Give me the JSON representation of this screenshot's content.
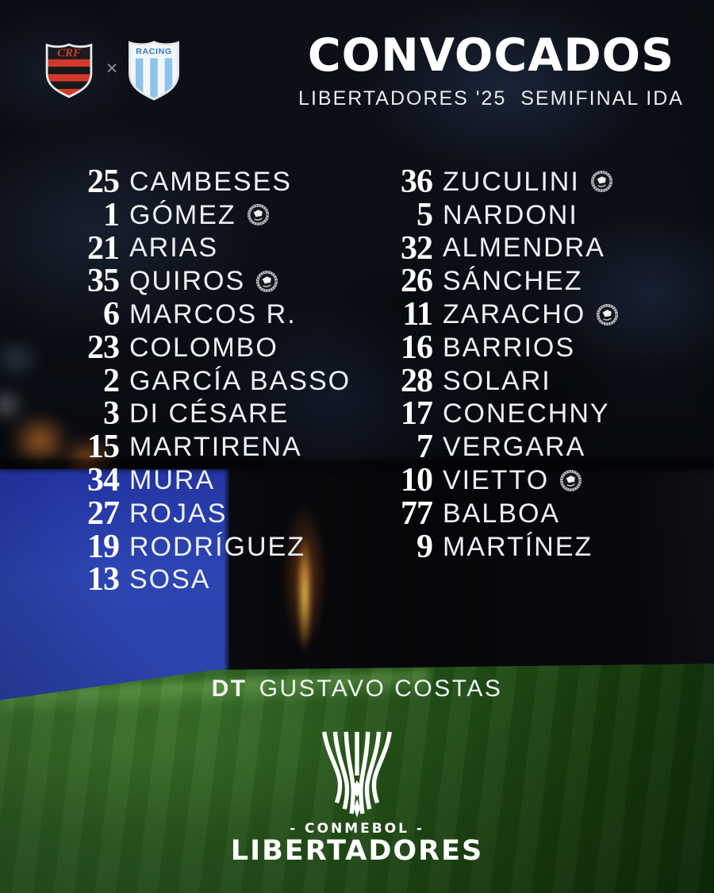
{
  "header": {
    "home_crest_monogram": "CRF",
    "away_crest_label": "RACING",
    "versus": "×",
    "title": "CONVOCADOS",
    "subtitle": "LIBERTADORES '25  SEMIFINAL IDA"
  },
  "squad": {
    "left_column": [
      {
        "number": "25",
        "name": "CAMBESES",
        "ball": false
      },
      {
        "number": "1",
        "name": "GÓMEZ",
        "ball": true
      },
      {
        "number": "21",
        "name": "ARIAS",
        "ball": false
      },
      {
        "number": "35",
        "name": "QUIROS",
        "ball": true
      },
      {
        "number": "6",
        "name": "MARCOS R.",
        "ball": false
      },
      {
        "number": "23",
        "name": "COLOMBO",
        "ball": false
      },
      {
        "number": "2",
        "name": "GARCÍA BASSO",
        "ball": false
      },
      {
        "number": "3",
        "name": "DI CÉSARE",
        "ball": false
      },
      {
        "number": "15",
        "name": "MARTIRENA",
        "ball": false
      },
      {
        "number": "34",
        "name": "MURA",
        "ball": false
      },
      {
        "number": "27",
        "name": "ROJAS",
        "ball": false
      },
      {
        "number": "19",
        "name": "RODRÍGUEZ",
        "ball": false
      },
      {
        "number": "13",
        "name": "SOSA",
        "ball": false
      }
    ],
    "right_column": [
      {
        "number": "36",
        "name": "ZUCULINI",
        "ball": true
      },
      {
        "number": "5",
        "name": "NARDONI",
        "ball": false
      },
      {
        "number": "32",
        "name": "ALMENDRA",
        "ball": false
      },
      {
        "number": "26",
        "name": "SÁNCHEZ",
        "ball": false
      },
      {
        "number": "11",
        "name": "ZARACHO",
        "ball": true
      },
      {
        "number": "16",
        "name": "BARRIOS",
        "ball": false
      },
      {
        "number": "28",
        "name": "SOLARI",
        "ball": false
      },
      {
        "number": "17",
        "name": "CONECHNY",
        "ball": false
      },
      {
        "number": "7",
        "name": "VERGARA",
        "ball": false
      },
      {
        "number": "10",
        "name": "VIETTO",
        "ball": true
      },
      {
        "number": "77",
        "name": "BALBOA",
        "ball": false
      },
      {
        "number": "9",
        "name": "MARTÍNEZ",
        "ball": false
      }
    ]
  },
  "coach": {
    "label": "DT",
    "name": "GUSTAVO COSTAS"
  },
  "footer": {
    "confederation": "- CONMEBOL -",
    "competition": "LIBERTADORES"
  },
  "colors": {
    "flamengo_red": "#d13a2b",
    "racing_sky": "#8cc5e9",
    "led_board_blue": "#2c45b2",
    "pitch_green": "#2f6322",
    "glow_amber": "#e8a33c",
    "text_white": "#f2f3f5"
  }
}
